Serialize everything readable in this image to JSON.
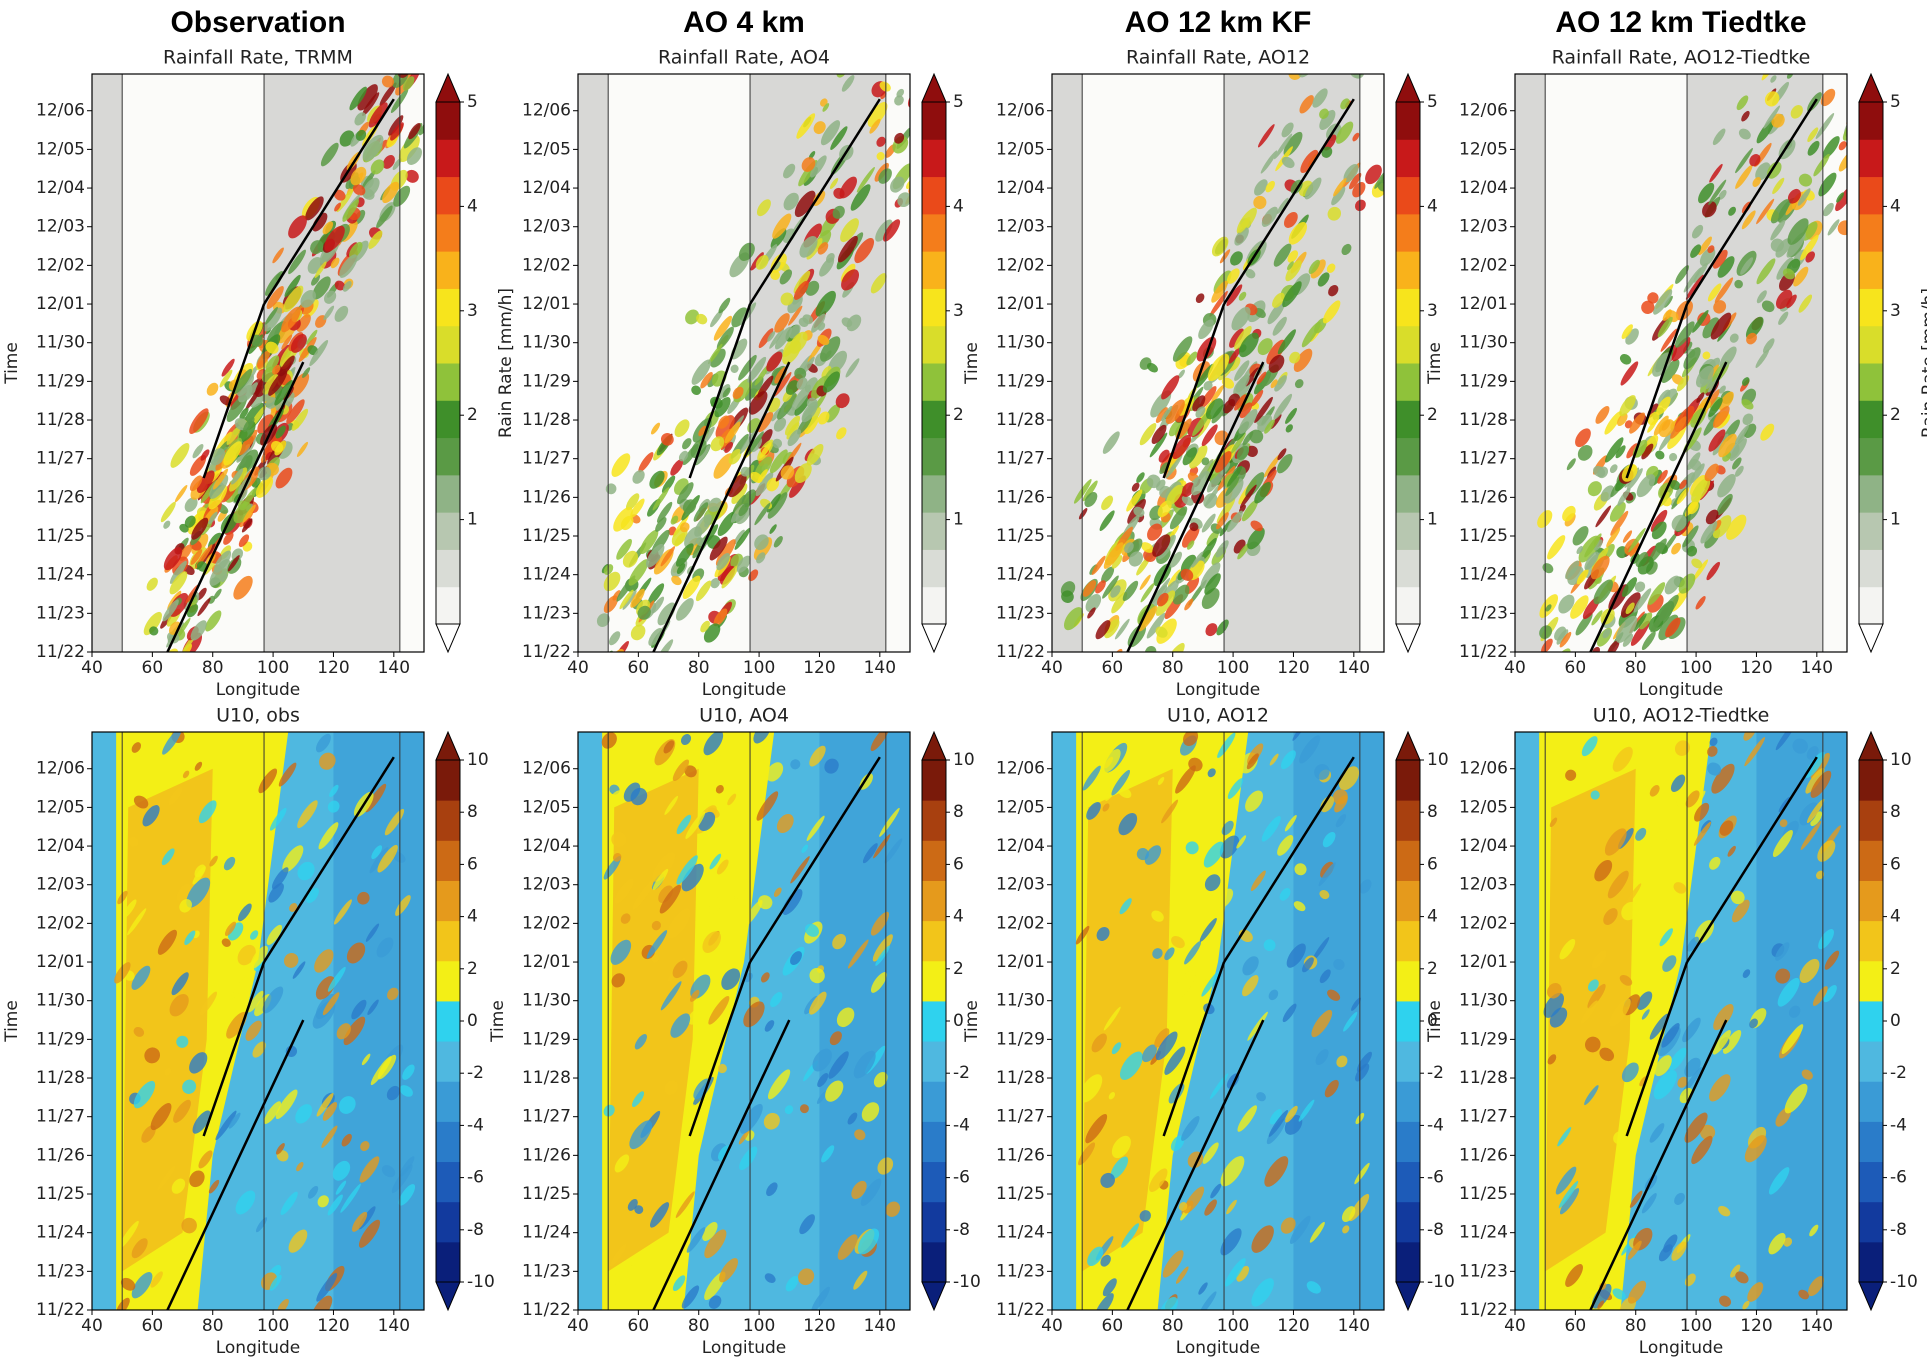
{
  "chart_data": [
    {
      "type": "heatmap",
      "heading": "Observation",
      "title": "Rainfall Rate, TRMM",
      "xlabel": "Longitude",
      "ylabel": "Time",
      "colorbar_label": "Rain Rate [mm/h]",
      "xlim": [
        40,
        150
      ],
      "xticks": [
        40,
        60,
        80,
        100,
        120,
        140
      ],
      "ycategories": [
        "11/22",
        "11/23",
        "11/24",
        "11/25",
        "11/26",
        "11/27",
        "11/28",
        "11/29",
        "11/30",
        "12/01",
        "12/02",
        "12/03",
        "12/04",
        "12/05",
        "12/06"
      ],
      "clim": [
        0,
        5
      ],
      "cticks": [
        1,
        2,
        3,
        4,
        5
      ],
      "colormap": [
        "#f4f4f2",
        "#d9dcd6",
        "#b7c7b0",
        "#8fb386",
        "#5a9a45",
        "#3f8f2a",
        "#8fc23a",
        "#d9dd2a",
        "#f7e41c",
        "#f9b21b",
        "#f47d1b",
        "#ea4a1a",
        "#c8191a",
        "#8f0d0d"
      ]
    },
    {
      "type": "heatmap",
      "heading": "AO 4 km",
      "title": "Rainfall Rate, AO4",
      "xlabel": "Longitude",
      "xlim": [
        40,
        150
      ],
      "xticks": [
        40,
        60,
        80,
        100,
        120,
        140
      ],
      "ycategories": [
        "11/22",
        "11/23",
        "11/24",
        "11/25",
        "11/26",
        "11/27",
        "11/28",
        "11/29",
        "11/30",
        "12/01",
        "12/02",
        "12/03",
        "12/04",
        "12/05",
        "12/06"
      ],
      "clim": [
        0,
        5
      ],
      "cticks": [
        1,
        2,
        3,
        4,
        5
      ],
      "colormap": [
        "#f4f4f2",
        "#d9dcd6",
        "#b7c7b0",
        "#8fb386",
        "#5a9a45",
        "#3f8f2a",
        "#8fc23a",
        "#d9dd2a",
        "#f7e41c",
        "#f9b21b",
        "#f47d1b",
        "#ea4a1a",
        "#c8191a",
        "#8f0d0d"
      ]
    },
    {
      "type": "heatmap",
      "heading": "AO 12 km KF",
      "title": "Rainfall Rate, AO12",
      "xlabel": "Longitude",
      "ylabel": "Time",
      "xlim": [
        40,
        150
      ],
      "xticks": [
        40,
        60,
        80,
        100,
        120,
        140
      ],
      "ycategories": [
        "11/22",
        "11/23",
        "11/24",
        "11/25",
        "11/26",
        "11/27",
        "11/28",
        "11/29",
        "11/30",
        "12/01",
        "12/02",
        "12/03",
        "12/04",
        "12/05",
        "12/06"
      ],
      "clim": [
        0,
        5
      ],
      "cticks": [
        1,
        2,
        3,
        4,
        5
      ],
      "colormap": [
        "#f4f4f2",
        "#d9dcd6",
        "#b7c7b0",
        "#8fb386",
        "#5a9a45",
        "#3f8f2a",
        "#8fc23a",
        "#d9dd2a",
        "#f7e41c",
        "#f9b21b",
        "#f47d1b",
        "#ea4a1a",
        "#c8191a",
        "#8f0d0d"
      ]
    },
    {
      "type": "heatmap",
      "heading": "AO 12 km Tiedtke",
      "title": "Rainfall Rate, AO12-Tiedtke",
      "xlabel": "Longitude",
      "ylabel": "Time",
      "colorbar_label": "Rain Rate [mm/h]",
      "xlim": [
        40,
        150
      ],
      "xticks": [
        40,
        60,
        80,
        100,
        120,
        140
      ],
      "ycategories": [
        "11/22",
        "11/23",
        "11/24",
        "11/25",
        "11/26",
        "11/27",
        "11/28",
        "11/29",
        "11/30",
        "12/01",
        "12/02",
        "12/03",
        "12/04",
        "12/05",
        "12/06"
      ],
      "clim": [
        0,
        5
      ],
      "cticks": [
        1,
        2,
        3,
        4,
        5
      ],
      "colormap": [
        "#f4f4f2",
        "#d9dcd6",
        "#b7c7b0",
        "#8fb386",
        "#5a9a45",
        "#3f8f2a",
        "#8fc23a",
        "#d9dd2a",
        "#f7e41c",
        "#f9b21b",
        "#f47d1b",
        "#ea4a1a",
        "#c8191a",
        "#8f0d0d"
      ]
    },
    {
      "type": "heatmap",
      "title": "U10, obs",
      "xlabel": "Longitude",
      "ylabel": "Time",
      "xlim": [
        40,
        150
      ],
      "xticks": [
        40,
        60,
        80,
        100,
        120,
        140
      ],
      "ycategories": [
        "11/22",
        "11/23",
        "11/24",
        "11/25",
        "11/26",
        "11/27",
        "11/28",
        "11/29",
        "11/30",
        "12/01",
        "12/02",
        "12/03",
        "12/04",
        "12/05",
        "12/06"
      ],
      "clim": [
        -10,
        10
      ],
      "cticks": [
        -10,
        -8,
        -6,
        -4,
        -2,
        0,
        2,
        4,
        6,
        8,
        10
      ],
      "colormap": [
        "#0a1f7a",
        "#123a9e",
        "#1d5bb8",
        "#2a7cc9",
        "#3a9bd6",
        "#4fb8e0",
        "#2fd2ee",
        "#f3ef16",
        "#f2c51a",
        "#e59a1c",
        "#cc6a15",
        "#a8400f",
        "#7a1a0a"
      ]
    },
    {
      "type": "heatmap",
      "title": "U10, AO4",
      "xlabel": "Longitude",
      "ylabel": "Time",
      "xlim": [
        40,
        150
      ],
      "xticks": [
        40,
        60,
        80,
        100,
        120,
        140
      ],
      "ycategories": [
        "11/22",
        "11/23",
        "11/24",
        "11/25",
        "11/26",
        "11/27",
        "11/28",
        "11/29",
        "11/30",
        "12/01",
        "12/02",
        "12/03",
        "12/04",
        "12/05",
        "12/06"
      ],
      "clim": [
        -10,
        10
      ],
      "cticks": [
        -10,
        -8,
        -6,
        -4,
        -2,
        0,
        2,
        4,
        6,
        8,
        10
      ],
      "colormap": [
        "#0a1f7a",
        "#123a9e",
        "#1d5bb8",
        "#2a7cc9",
        "#3a9bd6",
        "#4fb8e0",
        "#2fd2ee",
        "#f3ef16",
        "#f2c51a",
        "#e59a1c",
        "#cc6a15",
        "#a8400f",
        "#7a1a0a"
      ]
    },
    {
      "type": "heatmap",
      "title": "U10, AO12",
      "xlabel": "Longitude",
      "ylabel": "Time",
      "xlim": [
        40,
        150
      ],
      "xticks": [
        40,
        60,
        80,
        100,
        120,
        140
      ],
      "ycategories": [
        "11/22",
        "11/23",
        "11/24",
        "11/25",
        "11/26",
        "11/27",
        "11/28",
        "11/29",
        "11/30",
        "12/01",
        "12/02",
        "12/03",
        "12/04",
        "12/05",
        "12/06"
      ],
      "clim": [
        -10,
        10
      ],
      "cticks": [
        -10,
        -8,
        -6,
        -4,
        -2,
        0,
        2,
        4,
        6,
        8,
        10
      ],
      "colormap": [
        "#0a1f7a",
        "#123a9e",
        "#1d5bb8",
        "#2a7cc9",
        "#3a9bd6",
        "#4fb8e0",
        "#2fd2ee",
        "#f3ef16",
        "#f2c51a",
        "#e59a1c",
        "#cc6a15",
        "#a8400f",
        "#7a1a0a"
      ]
    },
    {
      "type": "heatmap",
      "title": "U10, AO12-Tiedtke",
      "xlabel": "Longitude",
      "ylabel": "Time",
      "xlim": [
        40,
        150
      ],
      "xticks": [
        40,
        60,
        80,
        100,
        120,
        140
      ],
      "ycategories": [
        "11/22",
        "11/23",
        "11/24",
        "11/25",
        "11/26",
        "11/27",
        "11/28",
        "11/29",
        "11/30",
        "12/01",
        "12/02",
        "12/03",
        "12/04",
        "12/05",
        "12/06"
      ],
      "clim": [
        -10,
        10
      ],
      "cticks": [
        -10,
        -8,
        -6,
        -4,
        -2,
        0,
        2,
        4,
        6,
        8,
        10
      ],
      "colormap": [
        "#0a1f7a",
        "#123a9e",
        "#1d5bb8",
        "#2a7cc9",
        "#3a9bd6",
        "#4fb8e0",
        "#2fd2ee",
        "#f3ef16",
        "#f2c51a",
        "#e59a1c",
        "#cc6a15",
        "#a8400f",
        "#7a1a0a"
      ]
    }
  ]
}
